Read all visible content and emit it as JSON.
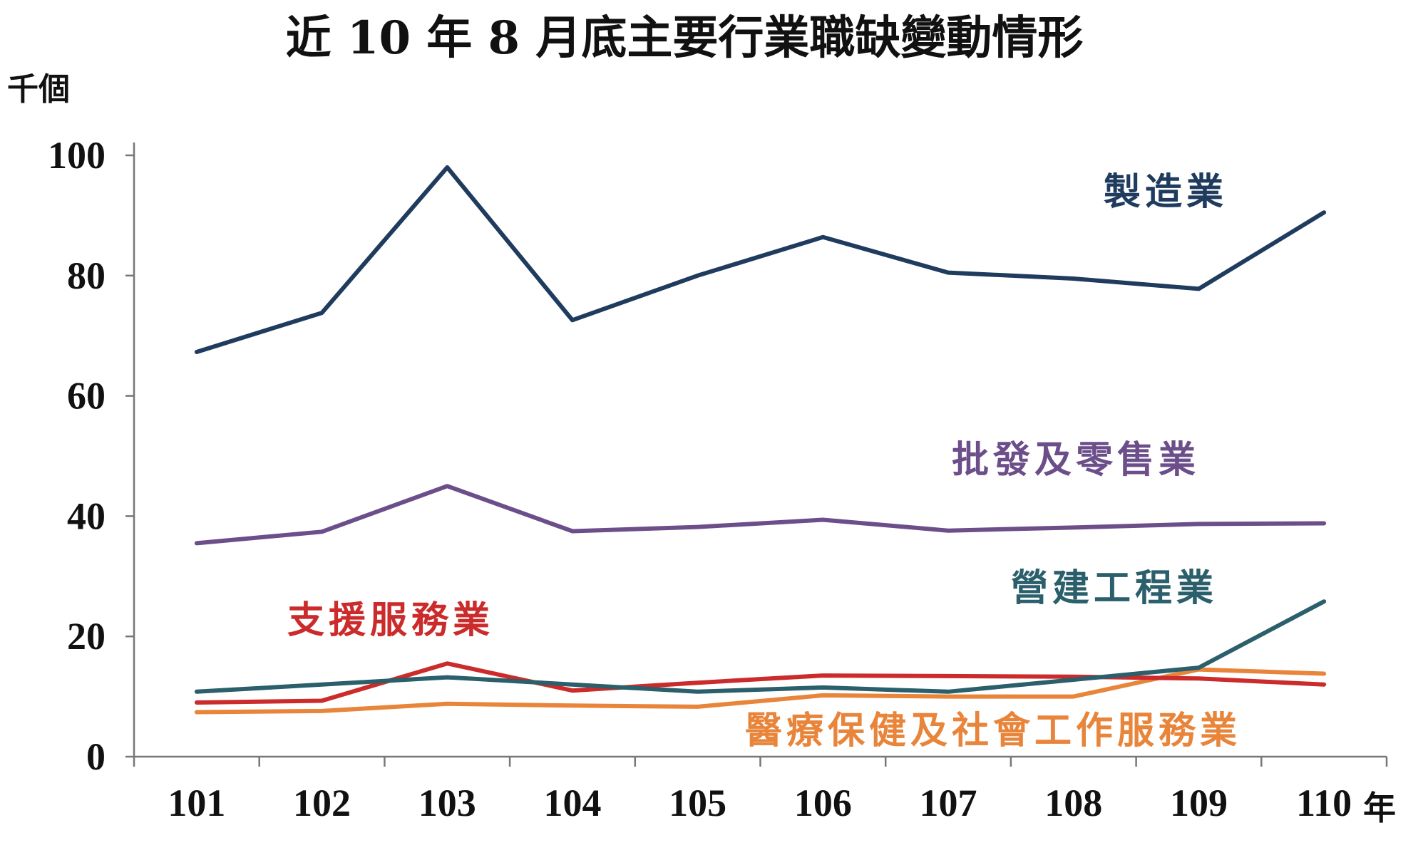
{
  "chart_data": {
    "type": "line",
    "title": "近 10 年 8 月底主要行業職缺變動情形",
    "ylabel": "千個",
    "xunit": "年",
    "categories": [
      "101",
      "102",
      "103",
      "104",
      "105",
      "106",
      "107",
      "108",
      "109",
      "110"
    ],
    "ylim": [
      0,
      100
    ],
    "yticks": [
      0,
      20,
      40,
      60,
      80,
      100
    ],
    "grid": false,
    "legend": "inline labels",
    "series": [
      {
        "name": "製造業",
        "color": "#1f3b5e",
        "values": [
          67.3,
          73.8,
          98.0,
          72.6,
          80.0,
          86.4,
          80.5,
          79.5,
          77.8,
          90.5
        ]
      },
      {
        "name": "批發及零售業",
        "color": "#6b4e8a",
        "values": [
          35.5,
          37.4,
          45.0,
          37.5,
          38.2,
          39.4,
          37.6,
          38.1,
          38.7,
          38.8
        ]
      },
      {
        "name": "營建工程業",
        "color": "#2a5f6b",
        "values": [
          10.8,
          12.0,
          13.2,
          12.0,
          10.8,
          11.5,
          10.8,
          12.8,
          14.8,
          25.8
        ]
      },
      {
        "name": "支援服務業",
        "color": "#cc2b2b",
        "values": [
          9.0,
          9.3,
          15.5,
          11.0,
          12.3,
          13.5,
          13.4,
          13.3,
          13.0,
          12.0
        ]
      },
      {
        "name": "醫療保健及社會工作服務業",
        "color": "#e8853a",
        "values": [
          7.4,
          7.6,
          8.8,
          8.5,
          8.3,
          10.2,
          10.0,
          10.0,
          14.5,
          13.8
        ]
      }
    ]
  }
}
